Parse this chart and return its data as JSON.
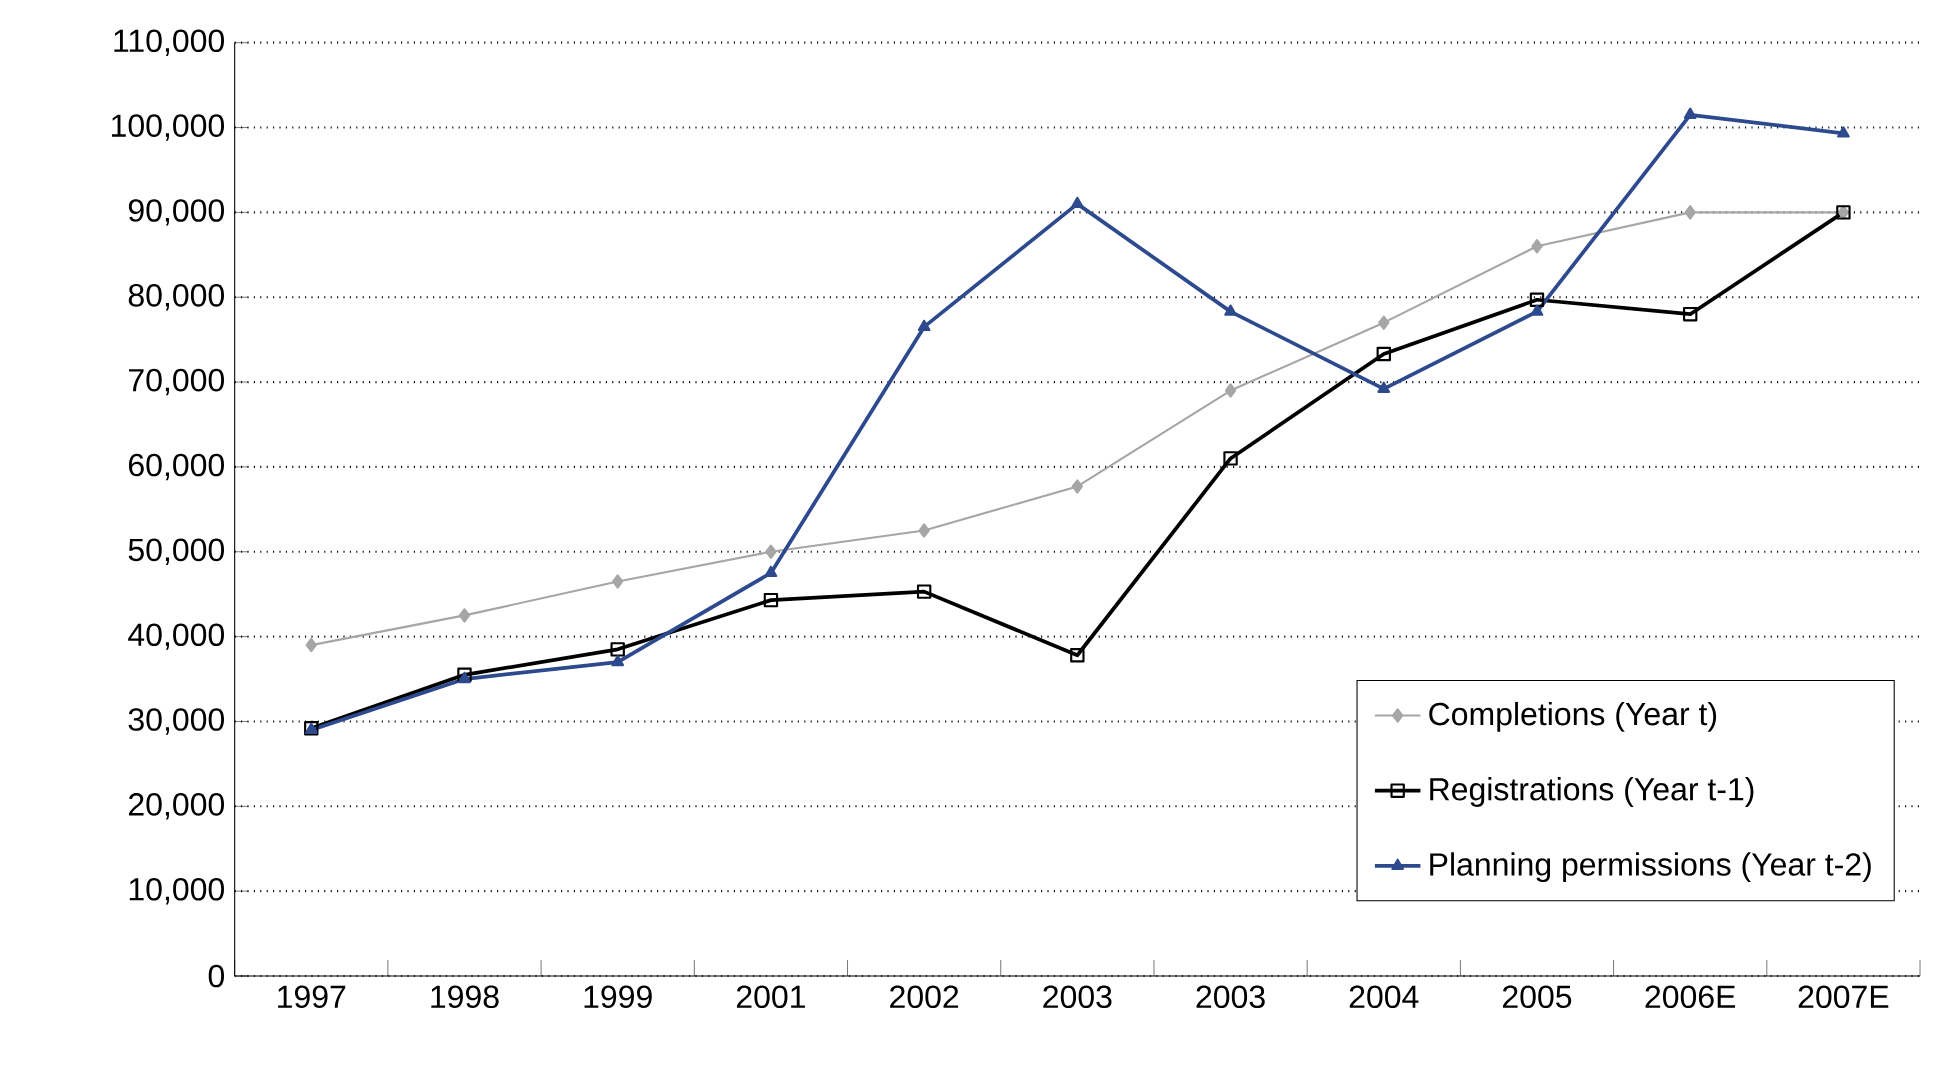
{
  "chart_data": {
    "type": "line",
    "categories": [
      "1997",
      "1998",
      "1999",
      "2001",
      "2002",
      "2003",
      "2003",
      "2004",
      "2005",
      "2006E",
      "2007E"
    ],
    "series": [
      {
        "name": "Completions (Year t)",
        "color": "#a6a6a6",
        "marker": "diamond",
        "values": [
          39000,
          42500,
          46500,
          50000,
          52500,
          57700,
          69000,
          77000,
          86000,
          90000,
          90000
        ]
      },
      {
        "name": "Registrations (Year t-1)",
        "color": "#000000",
        "marker": "square",
        "values": [
          29200,
          35500,
          38500,
          44300,
          45300,
          37800,
          61000,
          73300,
          79700,
          78000,
          90000
        ]
      },
      {
        "name": "Planning permissions (Year t-2)",
        "color": "#2e4a8e",
        "marker": "triangle",
        "values": [
          29000,
          35000,
          37000,
          47500,
          76500,
          91000,
          78300,
          69200,
          78300,
          101500,
          99300
        ]
      }
    ],
    "ylim": [
      0,
      110000
    ],
    "yticks": [
      {
        "value": 0,
        "label": "0"
      },
      {
        "value": 10000,
        "label": "10,000"
      },
      {
        "value": 20000,
        "label": "20,000"
      },
      {
        "value": 30000,
        "label": "30,000"
      },
      {
        "value": 40000,
        "label": "40,000"
      },
      {
        "value": 50000,
        "label": "50,000"
      },
      {
        "value": 60000,
        "label": "60,000"
      },
      {
        "value": 70000,
        "label": "70,000"
      },
      {
        "value": 80000,
        "label": "80,000"
      },
      {
        "value": 90000,
        "label": "90,000"
      },
      {
        "value": 100000,
        "label": "100,000"
      },
      {
        "value": 110000,
        "label": "110,000"
      }
    ],
    "grid": "y",
    "legend": "bottom right",
    "line_style": "solid"
  }
}
